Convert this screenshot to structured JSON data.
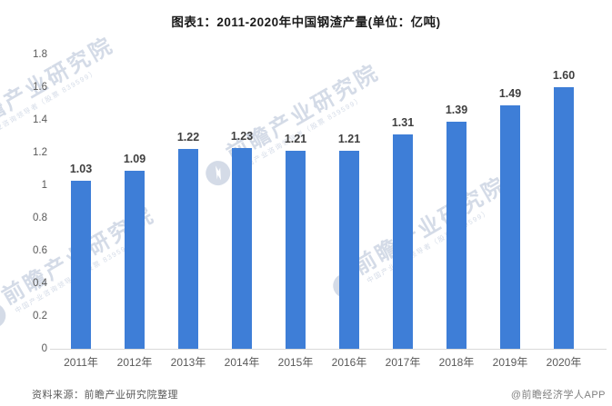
{
  "chart_data": {
    "type": "bar",
    "title": "图表1：2011-2020年中国钢渣产量(单位：亿吨)",
    "categories": [
      "2011年",
      "2012年",
      "2013年",
      "2014年",
      "2015年",
      "2016年",
      "2017年",
      "2018年",
      "2019年",
      "2020年"
    ],
    "values": [
      1.03,
      1.09,
      1.22,
      1.23,
      1.21,
      1.21,
      1.31,
      1.39,
      1.49,
      1.6
    ],
    "value_labels": [
      "1.03",
      "1.09",
      "1.22",
      "1.23",
      "1.21",
      "1.21",
      "1.31",
      "1.39",
      "1.49",
      "1.60"
    ],
    "xlabel": "",
    "ylabel": "",
    "ylim": [
      0,
      1.8
    ],
    "yticks": [
      "1.8",
      "1.6",
      "1.4",
      "1.2",
      "1",
      "0.8",
      "0.6",
      "0.4",
      "0.2",
      "0"
    ],
    "grid": false,
    "legend": "none",
    "bar_color": "#3E7ED7"
  },
  "watermark": {
    "text": "前瞻产业研究院",
    "subtext": "中国产业咨询领导者（股票 839599）",
    "color": "#aab8d0"
  },
  "footer": {
    "source": "资料来源：前瞻产业研究院整理",
    "credit": "@前瞻经济学人APP"
  }
}
